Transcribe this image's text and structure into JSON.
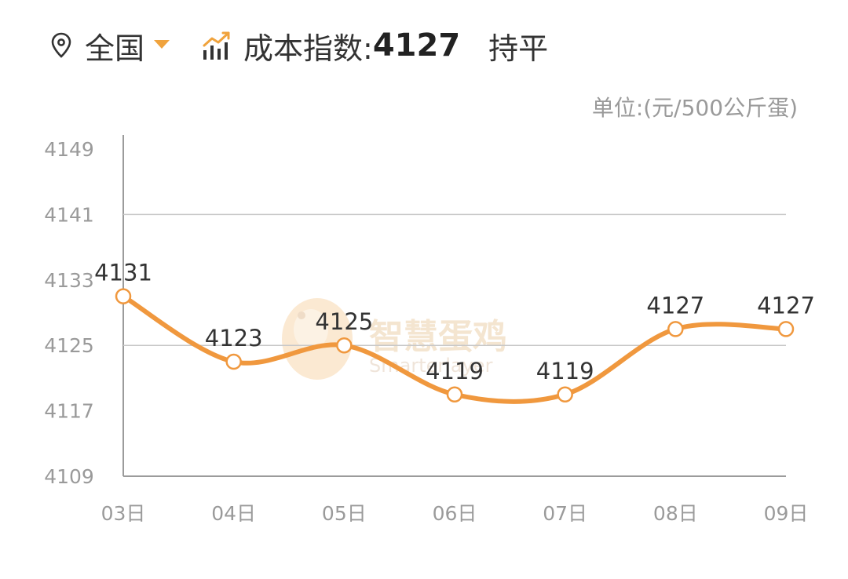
{
  "header": {
    "region_label": "全国",
    "index_label": "成本指数:",
    "index_value": "4127",
    "trend_label": "持平",
    "icons": [
      "location-pin-icon",
      "dropdown-caret-icon",
      "trend-chart-icon"
    ],
    "accent_color": "#f0a33d"
  },
  "unit_label": "单位:(元/500公斤蛋)",
  "watermark": {
    "text": "智慧蛋鸡",
    "subtext": "Smarterlayer"
  },
  "chart_data": {
    "type": "line",
    "categories": [
      "03日",
      "04日",
      "05日",
      "06日",
      "07日",
      "08日",
      "09日"
    ],
    "series": [
      {
        "values": [
          4131,
          4123,
          4125,
          4119,
          4119,
          4127,
          4127
        ],
        "color": "#f0983e"
      }
    ],
    "y_ticks": [
      "4149",
      "4141",
      "4133",
      "4125",
      "4117",
      "4109"
    ],
    "ylim": [
      4109,
      4149
    ],
    "data_labels": [
      "4131",
      "4123",
      "4125",
      "4119",
      "4119",
      "4127",
      "4127"
    ],
    "grid": true,
    "smooth": true,
    "title": "",
    "xlabel": "",
    "ylabel": ""
  }
}
